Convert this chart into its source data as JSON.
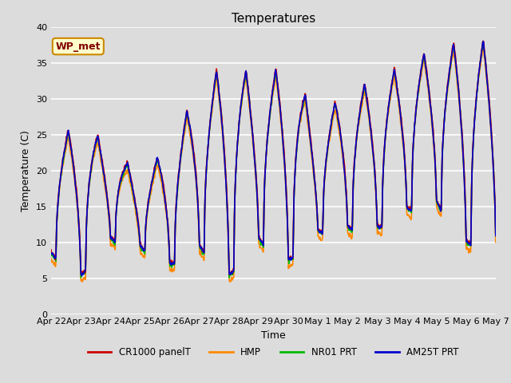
{
  "title": "Temperatures",
  "xlabel": "Time",
  "ylabel": "Temperature (C)",
  "ylim": [
    0,
    40
  ],
  "background_color": "#dcdcdc",
  "plot_bg_color": "#dcdcdc",
  "grid_color": "#ffffff",
  "annotation_text": "WP_met",
  "annotation_bg": "#ffffcc",
  "annotation_border": "#cc8800",
  "annotation_text_color": "#800000",
  "x_tick_labels": [
    "Apr 22",
    "Apr 23",
    "Apr 24",
    "Apr 25",
    "Apr 26",
    "Apr 27",
    "Apr 28",
    "Apr 29",
    "Apr 30",
    "May 1",
    "May 2",
    "May 3",
    "May 4",
    "May 5",
    "May 6",
    "May 7"
  ],
  "series": {
    "CR1000 panelT": {
      "color": "#cc0000",
      "lw": 1.2
    },
    "HMP": {
      "color": "#ff8800",
      "lw": 1.2
    },
    "NR01 PRT": {
      "color": "#00bb00",
      "lw": 1.2
    },
    "AM25T PRT": {
      "color": "#0000cc",
      "lw": 1.2
    }
  },
  "title_fontsize": 11,
  "label_fontsize": 9,
  "tick_fontsize": 8,
  "n_days": 15,
  "pts_per_day": 144,
  "day_peaks": [
    24,
    26.5,
    23.5,
    19,
    23.5,
    31.5,
    35.5,
    32.5,
    35,
    27,
    31,
    32.5,
    35,
    37,
    38,
    38
  ],
  "day_mins": [
    8,
    5,
    10,
    9,
    6.5,
    9,
    5,
    10,
    7,
    11,
    11.5,
    11.5,
    14,
    15,
    9.5,
    13
  ]
}
